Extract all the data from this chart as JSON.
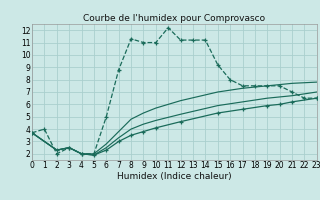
{
  "title": "Courbe de l'humidex pour Comprovasco",
  "xlabel": "Humidex (Indice chaleur)",
  "background_color": "#cce8e6",
  "grid_color": "#aacfce",
  "line_color": "#1a6b5a",
  "xlim": [
    0,
    23
  ],
  "ylim": [
    1.5,
    12.5
  ],
  "xticks": [
    0,
    1,
    2,
    3,
    4,
    5,
    6,
    7,
    8,
    9,
    10,
    11,
    12,
    13,
    14,
    15,
    16,
    17,
    18,
    19,
    20,
    21,
    22,
    23
  ],
  "yticks": [
    2,
    3,
    4,
    5,
    6,
    7,
    8,
    9,
    10,
    11,
    12
  ],
  "main_x": [
    0,
    1,
    2,
    3,
    4,
    5,
    6,
    7,
    8,
    9,
    10,
    11,
    12,
    13,
    14,
    15,
    16,
    17,
    18,
    19,
    20,
    21,
    22,
    23
  ],
  "main_y": [
    3.7,
    4.0,
    2.0,
    2.5,
    2.0,
    2.0,
    5.0,
    8.8,
    11.3,
    11.0,
    11.0,
    12.2,
    11.2,
    11.2,
    11.2,
    9.2,
    8.0,
    7.5,
    7.5,
    7.5,
    7.5,
    7.0,
    6.5,
    6.5
  ],
  "line2_x": [
    0,
    2,
    3,
    4,
    5,
    6,
    7,
    8,
    9,
    10,
    12,
    15,
    17,
    19,
    20,
    21,
    23
  ],
  "line2_y": [
    3.7,
    2.3,
    2.5,
    2.0,
    1.9,
    2.3,
    3.0,
    3.5,
    3.8,
    4.1,
    4.6,
    5.3,
    5.6,
    5.9,
    6.0,
    6.2,
    6.5
  ],
  "line3_x": [
    0,
    2,
    3,
    4,
    5,
    6,
    7,
    8,
    9,
    10,
    12,
    15,
    17,
    19,
    20,
    21,
    23
  ],
  "line3_y": [
    3.7,
    2.3,
    2.5,
    2.0,
    1.9,
    2.5,
    3.3,
    4.0,
    4.4,
    4.7,
    5.2,
    5.9,
    6.2,
    6.5,
    6.6,
    6.7,
    7.0
  ],
  "line4_x": [
    0,
    2,
    3,
    4,
    5,
    6,
    7,
    8,
    9,
    10,
    12,
    15,
    17,
    19,
    20,
    21,
    23
  ],
  "line4_y": [
    3.7,
    2.3,
    2.5,
    2.0,
    2.0,
    2.8,
    3.8,
    4.8,
    5.3,
    5.7,
    6.3,
    7.0,
    7.3,
    7.5,
    7.6,
    7.7,
    7.8
  ]
}
